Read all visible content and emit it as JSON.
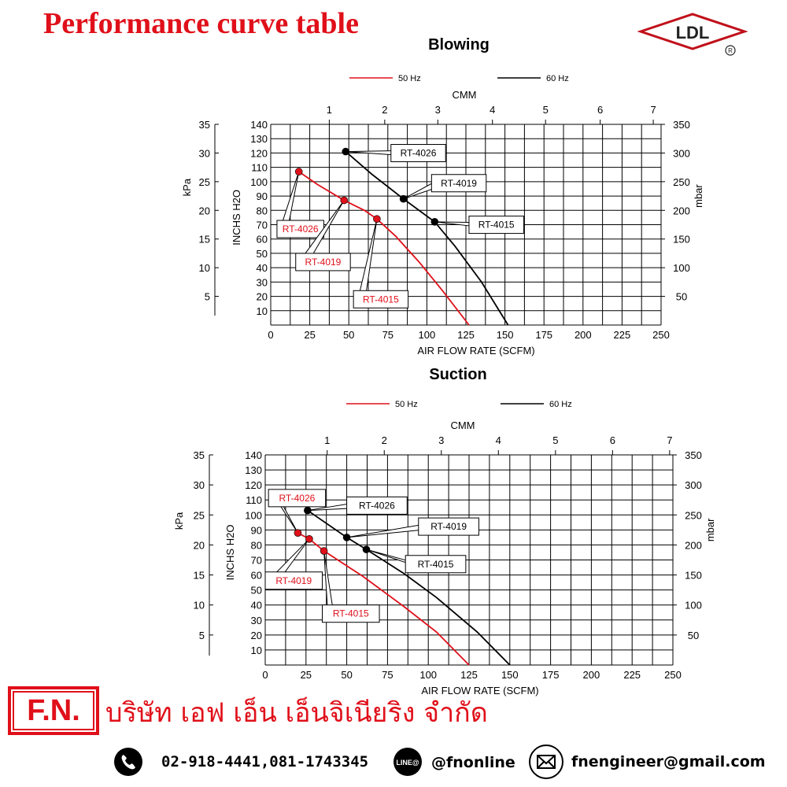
{
  "page": {
    "title": "Performance curve table",
    "brand": "LDL"
  },
  "footer": {
    "fn_label": "F.N.",
    "company": "บริษัท เอฟ เอ็น เอ็นจิเนียริง จำกัด",
    "phone": "02-918-4441,081-1743345",
    "line_badge": "LINE@",
    "line_id": "@fnonline",
    "email": "fnengineer@gmail.com",
    "icons": [
      "phone-icon",
      "line-icon",
      "email-icon"
    ]
  },
  "chart_data": [
    {
      "type": "line",
      "title": "Blowing",
      "xlabel": "AIR FLOW RATE (SCFM)",
      "x2label": "CMM",
      "ylabel_left_outer": "kPa",
      "ylabel_left_inner": "INCHS H2O",
      "ylabel_right": "mbar",
      "xlim": [
        0,
        250
      ],
      "x_ticks": [
        0,
        25,
        50,
        75,
        100,
        125,
        150,
        175,
        200,
        225,
        250
      ],
      "x2_ticks": [
        1,
        2,
        3,
        4,
        5,
        6,
        7
      ],
      "x2_ticks_pos": [
        37.5,
        73,
        107,
        142,
        176,
        211,
        245
      ],
      "ylim": [
        0,
        140
      ],
      "y_inner_ticks": [
        10,
        20,
        30,
        40,
        50,
        60,
        70,
        80,
        90,
        100,
        110,
        120,
        130,
        140
      ],
      "y_kpa_ticks": [
        5,
        10,
        15,
        20,
        25,
        30,
        35
      ],
      "y_kpa_pos": [
        20,
        40,
        60,
        80,
        100,
        120,
        140
      ],
      "y_mbar_ticks": [
        50,
        100,
        150,
        200,
        250,
        300,
        350
      ],
      "y_mbar_pos": [
        20,
        40,
        60,
        80,
        100,
        120,
        140
      ],
      "legend": [
        {
          "name": "50 Hz",
          "color": "#e0101a"
        },
        {
          "name": "60 Hz",
          "color": "#000000"
        }
      ],
      "series": [
        {
          "name": "50 Hz",
          "color": "#e0101a",
          "x": [
            18,
            30,
            47,
            60,
            68,
            80,
            95,
            110,
            127
          ],
          "y": [
            107,
            98,
            87,
            80,
            74,
            62,
            44,
            24,
            0
          ]
        },
        {
          "name": "60 Hz",
          "color": "#000000",
          "x": [
            48,
            65,
            85,
            105,
            118,
            135,
            152
          ],
          "y": [
            121,
            105,
            88,
            72,
            55,
            30,
            0
          ]
        }
      ],
      "points": [
        {
          "label": "RT-4026",
          "x": 18,
          "y": 107,
          "color": "#e0101a",
          "label_x": 4,
          "label_y": 73,
          "label_w": 30
        },
        {
          "label": "RT-4019",
          "x": 47,
          "y": 87,
          "color": "#e0101a",
          "label_x": 16,
          "label_y": 50,
          "label_w": 35
        },
        {
          "label": "RT-4015",
          "x": 68,
          "y": 74,
          "color": "#e0101a",
          "label_x": 53,
          "label_y": 24,
          "label_w": 35
        },
        {
          "label": "RT-4026",
          "x": 48,
          "y": 121,
          "color": "#000000",
          "label_x": 77,
          "label_y": 126,
          "label_w": 35
        },
        {
          "label": "RT-4019",
          "x": 85,
          "y": 88,
          "color": "#000000",
          "label_x": 103,
          "label_y": 105,
          "label_w": 35
        },
        {
          "label": "RT-4015",
          "x": 105,
          "y": 72,
          "color": "#000000",
          "label_x": 127,
          "label_y": 76,
          "label_w": 35
        }
      ]
    },
    {
      "type": "line",
      "title": "Suction",
      "xlabel": "AIR FLOW RATE (SCFM)",
      "x2label": "CMM",
      "ylabel_left_outer": "kPa",
      "ylabel_left_inner": "INCHS H2O",
      "ylabel_right": "mbar",
      "xlim": [
        0,
        250
      ],
      "x_ticks": [
        0,
        25,
        50,
        75,
        100,
        125,
        150,
        175,
        200,
        225,
        250
      ],
      "x2_ticks": [
        1,
        2,
        3,
        4,
        5,
        6,
        7
      ],
      "x2_ticks_pos": [
        38,
        73,
        108,
        143,
        178,
        213,
        248
      ],
      "ylim": [
        0,
        140
      ],
      "y_inner_ticks": [
        10,
        20,
        30,
        40,
        50,
        60,
        70,
        80,
        90,
        100,
        110,
        120,
        130,
        140
      ],
      "y_kpa_ticks": [
        5,
        10,
        15,
        20,
        25,
        30,
        35
      ],
      "y_kpa_pos": [
        20,
        40,
        60,
        80,
        100,
        120,
        140
      ],
      "y_mbar_ticks": [
        50,
        100,
        150,
        200,
        250,
        300,
        350
      ],
      "y_mbar_pos": [
        20,
        40,
        60,
        80,
        100,
        120,
        140
      ],
      "legend": [
        {
          "name": "50 Hz",
          "color": "#e0101a"
        },
        {
          "name": "60 Hz",
          "color": "#000000"
        }
      ],
      "series": [
        {
          "name": "50 Hz",
          "color": "#e0101a",
          "x": [
            20,
            27,
            36,
            60,
            85,
            105,
            125
          ],
          "y": [
            88,
            84,
            76,
            59,
            39,
            22,
            0
          ]
        },
        {
          "name": "60 Hz",
          "color": "#000000",
          "x": [
            26,
            50,
            62,
            85,
            105,
            130,
            150
          ],
          "y": [
            103,
            85,
            77,
            61,
            45,
            22,
            0
          ]
        }
      ],
      "points": [
        {
          "label": "RT-4026",
          "x": 20,
          "y": 88,
          "color": "#e0101a",
          "label_x": 2,
          "label_y": 117,
          "label_w": 35
        },
        {
          "label": "RT-4019",
          "x": 27,
          "y": 84,
          "color": "#e0101a",
          "label_x": 0,
          "label_y": 62,
          "label_w": 35
        },
        {
          "label": "RT-4015",
          "x": 36,
          "y": 76,
          "color": "#e0101a",
          "label_x": 35,
          "label_y": 40,
          "label_w": 35
        },
        {
          "label": "RT-4026",
          "x": 26,
          "y": 103,
          "color": "#000000",
          "label_x": 50,
          "label_y": 112,
          "label_w": 37
        },
        {
          "label": "RT-4019",
          "x": 50,
          "y": 85,
          "color": "#000000",
          "label_x": 94,
          "label_y": 98,
          "label_w": 37
        },
        {
          "label": "RT-4015",
          "x": 62,
          "y": 77,
          "color": "#000000",
          "label_x": 86,
          "label_y": 73,
          "label_w": 37
        }
      ]
    }
  ]
}
